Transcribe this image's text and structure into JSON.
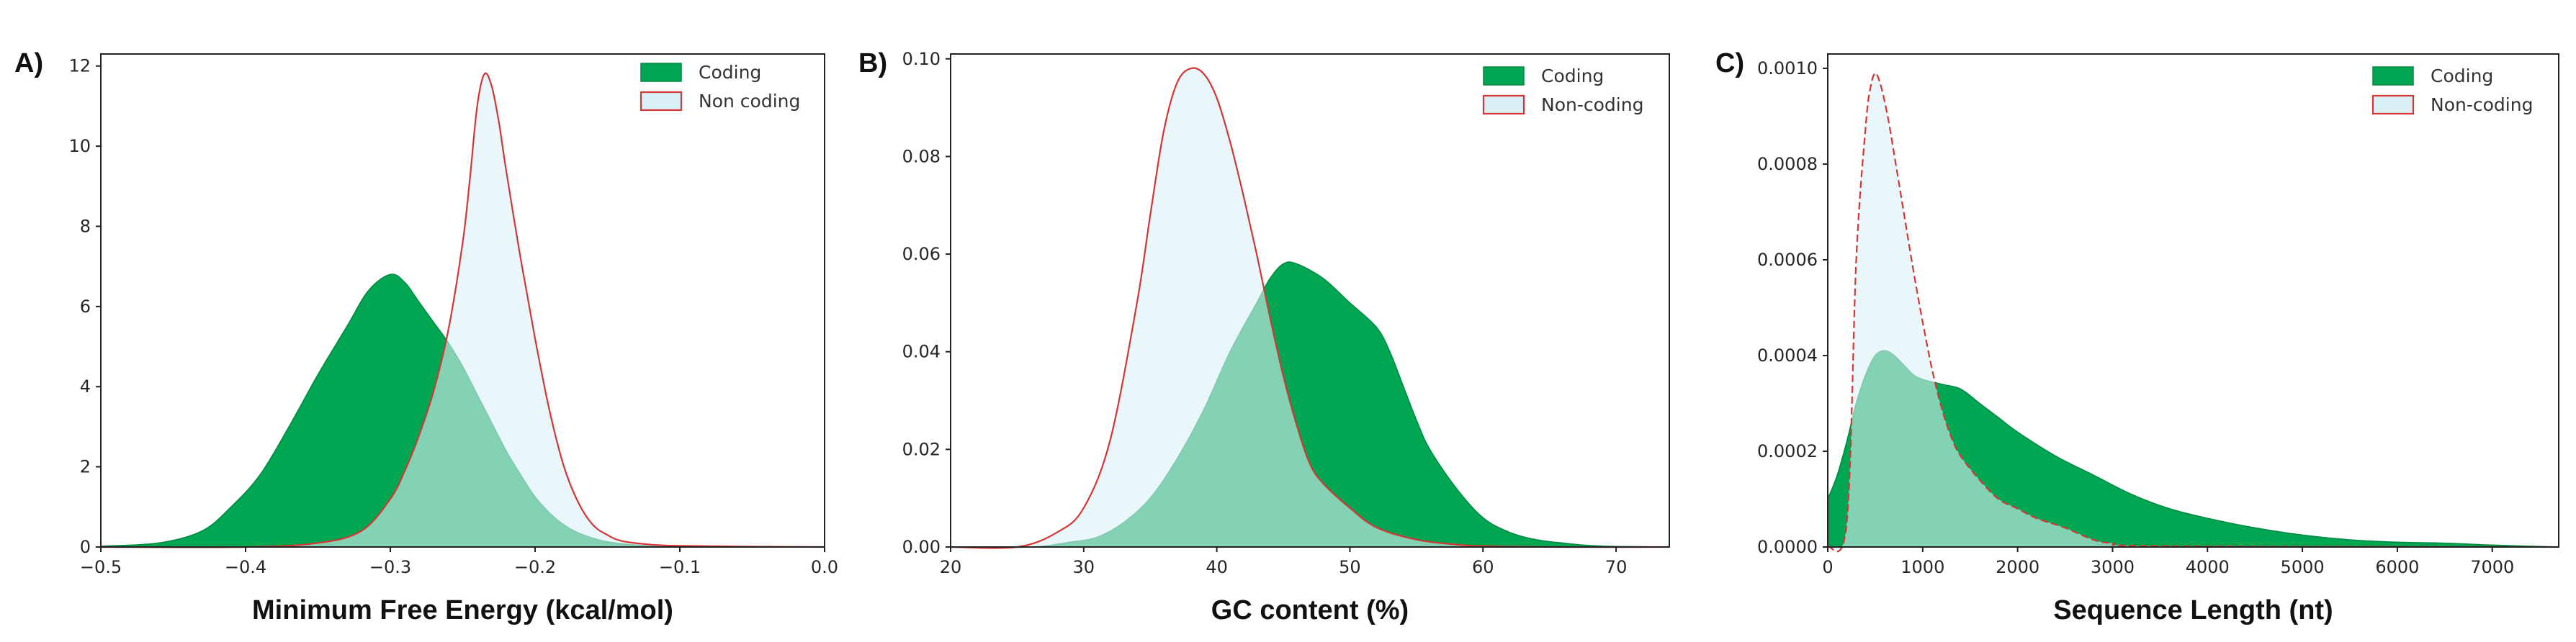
{
  "chart_data": [
    {
      "type": "area",
      "panel_label": "A)",
      "xlabel": "Minimum Free Energy (kcal/mol)",
      "ylabel": "",
      "xlim": [
        -0.5,
        0.0
      ],
      "ylim": [
        0,
        12.3
      ],
      "xticks": [
        -0.5,
        -0.4,
        -0.3,
        -0.2,
        -0.1,
        0.0
      ],
      "xtick_labels": [
        "−0.5",
        "−0.4",
        "−0.3",
        "−0.2",
        "−0.1",
        "0.0"
      ],
      "yticks": [
        0,
        2,
        4,
        6,
        8,
        10,
        12
      ],
      "ytick_labels": [
        "0",
        "2",
        "4",
        "6",
        "8",
        "10",
        "12"
      ],
      "legend_position": "top-right",
      "series": [
        {
          "name": "Coding",
          "fill": "#00a651",
          "stroke": "#008a44",
          "x": [
            -0.5,
            -0.46,
            -0.43,
            -0.41,
            -0.39,
            -0.37,
            -0.35,
            -0.33,
            -0.315,
            -0.3,
            -0.29,
            -0.28,
            -0.27,
            -0.26,
            -0.25,
            -0.24,
            -0.23,
            -0.22,
            -0.21,
            -0.2,
            -0.19,
            -0.18,
            -0.17,
            -0.16,
            -0.15,
            -0.13,
            -0.1,
            -0.05,
            0.0
          ],
          "values": [
            0.02,
            0.1,
            0.4,
            1.0,
            1.8,
            3.0,
            4.3,
            5.5,
            6.4,
            6.8,
            6.6,
            6.1,
            5.6,
            5.1,
            4.5,
            3.8,
            3.1,
            2.4,
            1.8,
            1.25,
            0.85,
            0.55,
            0.35,
            0.22,
            0.13,
            0.05,
            0.02,
            0.01,
            0.0
          ]
        },
        {
          "name": "Non coding",
          "fill": "#daf0f7",
          "stroke": "#d73535",
          "x": [
            -0.5,
            -0.4,
            -0.35,
            -0.32,
            -0.3,
            -0.29,
            -0.28,
            -0.27,
            -0.26,
            -0.25,
            -0.245,
            -0.24,
            -0.235,
            -0.23,
            -0.225,
            -0.22,
            -0.21,
            -0.2,
            -0.19,
            -0.18,
            -0.17,
            -0.16,
            -0.15,
            -0.14,
            -0.12,
            -0.1,
            -0.05,
            0.0
          ],
          "values": [
            0.0,
            0.0,
            0.1,
            0.4,
            1.2,
            1.9,
            2.8,
            3.9,
            5.4,
            7.6,
            9.2,
            11.0,
            11.8,
            11.5,
            10.6,
            9.4,
            7.2,
            5.2,
            3.4,
            2.0,
            1.1,
            0.55,
            0.3,
            0.15,
            0.06,
            0.03,
            0.01,
            0.0
          ]
        }
      ]
    },
    {
      "type": "area",
      "panel_label": "B)",
      "xlabel": "GC content (%)",
      "ylabel": "",
      "xlim": [
        20,
        74
      ],
      "ylim": [
        0,
        0.101
      ],
      "xticks": [
        20,
        30,
        40,
        50,
        60,
        70
      ],
      "xtick_labels": [
        "20",
        "30",
        "40",
        "50",
        "60",
        "70"
      ],
      "yticks": [
        0,
        0.02,
        0.04,
        0.06,
        0.08,
        0.1
      ],
      "ytick_labels": [
        "0.00",
        "0.02",
        "0.04",
        "0.06",
        "0.08",
        "0.10"
      ],
      "legend_position": "top-right",
      "series": [
        {
          "name": "Coding",
          "fill": "#00a651",
          "stroke": "#008a44",
          "x": [
            20,
            26,
            29,
            31,
            33,
            35,
            37,
            39,
            41,
            43,
            44,
            45,
            46,
            48,
            50,
            52,
            53,
            54,
            55,
            56,
            58,
            60,
            62,
            64,
            66,
            68,
            70,
            74
          ],
          "values": [
            0.0,
            0.0,
            0.001,
            0.002,
            0.005,
            0.01,
            0.018,
            0.028,
            0.04,
            0.05,
            0.055,
            0.058,
            0.058,
            0.055,
            0.05,
            0.045,
            0.04,
            0.033,
            0.026,
            0.02,
            0.012,
            0.006,
            0.003,
            0.0015,
            0.0008,
            0.0003,
            0.0001,
            0.0
          ]
        },
        {
          "name": "Non-coding",
          "fill": "#daf0f7",
          "stroke": "#d73535",
          "x": [
            20,
            25,
            28,
            30,
            32,
            34,
            35,
            36,
            37,
            38,
            39,
            40,
            41,
            42,
            43,
            44,
            45,
            46,
            47,
            48,
            50,
            52,
            55,
            58,
            60,
            65,
            74
          ],
          "values": [
            0.0,
            0.0,
            0.003,
            0.008,
            0.022,
            0.05,
            0.068,
            0.085,
            0.095,
            0.098,
            0.097,
            0.092,
            0.083,
            0.072,
            0.06,
            0.047,
            0.035,
            0.025,
            0.017,
            0.013,
            0.008,
            0.004,
            0.0015,
            0.0005,
            0.0002,
            0.0,
            0.0
          ]
        }
      ]
    },
    {
      "type": "area",
      "panel_label": "C)",
      "xlabel": "Sequence Length (nt)",
      "ylabel": "",
      "xlim": [
        0,
        7700
      ],
      "ylim": [
        0,
        0.00103
      ],
      "xticks": [
        0,
        1000,
        2000,
        3000,
        4000,
        5000,
        6000,
        7000
      ],
      "xtick_labels": [
        "0",
        "1000",
        "2000",
        "3000",
        "4000",
        "5000",
        "6000",
        "7000"
      ],
      "yticks": [
        0,
        0.0002,
        0.0004,
        0.0006,
        0.0008,
        0.001
      ],
      "ytick_labels": [
        "0.0000",
        "0.0002",
        "0.0004",
        "0.0006",
        "0.0008",
        "0.0010"
      ],
      "legend_position": "top-right",
      "series": [
        {
          "name": "Coding",
          "fill": "#00a651",
          "stroke": "#008a44",
          "x": [
            0,
            100,
            200,
            300,
            400,
            500,
            600,
            700,
            800,
            900,
            1000,
            1200,
            1400,
            1600,
            1800,
            2000,
            2400,
            2800,
            3200,
            3600,
            4000,
            4500,
            5000,
            5500,
            6000,
            6500,
            7000,
            7500,
            7700
          ],
          "values": [
            0.0001,
            0.00015,
            0.00022,
            0.0003,
            0.00036,
            0.0004,
            0.00041,
            0.0004,
            0.00038,
            0.00036,
            0.00035,
            0.00034,
            0.00033,
            0.0003,
            0.00027,
            0.00024,
            0.00019,
            0.00015,
            0.00011,
            8e-05,
            6e-05,
            4e-05,
            2.5e-05,
            1.5e-05,
            1e-05,
            8e-06,
            4e-06,
            1e-06,
            0.0
          ]
        },
        {
          "name": "Non-coding",
          "fill": "#daf0f7",
          "stroke": "#d73535",
          "x": [
            0,
            200,
            300,
            400,
            450,
            500,
            550,
            600,
            650,
            700,
            800,
            900,
            1000,
            1100,
            1200,
            1300,
            1400,
            1600,
            1800,
            2000,
            2200,
            2500,
            2800,
            3000,
            3500,
            7700
          ],
          "values": [
            0.0,
            5e-05,
            0.0006,
            0.00088,
            0.00096,
            0.00099,
            0.00097,
            0.00093,
            0.00088,
            0.00082,
            0.0007,
            0.00058,
            0.00047,
            0.00037,
            0.00029,
            0.00023,
            0.00019,
            0.00014,
            0.0001,
            8e-05,
            6e-05,
            4e-05,
            1.5e-05,
            8e-06,
            2e-06,
            0.0
          ]
        }
      ]
    }
  ]
}
